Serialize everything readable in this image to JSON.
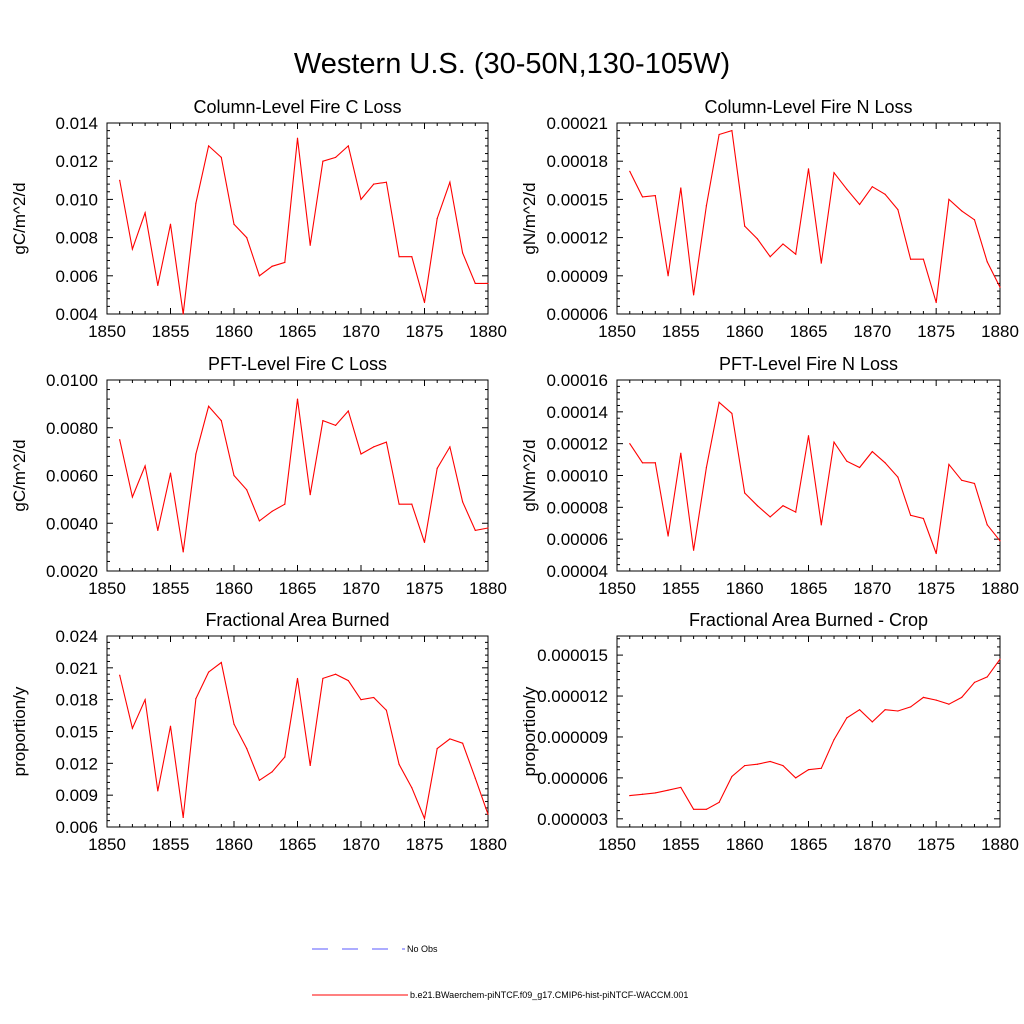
{
  "title": "Western U.S. (30-50N,130-105W)",
  "chart_data": [
    {
      "type": "line",
      "title": "Column-Level Fire C Loss",
      "ylabel": "gC/m^2/d",
      "xlim": [
        1850,
        1880
      ],
      "ylim": [
        0.004,
        0.014
      ],
      "xticks": [
        1850,
        1855,
        1860,
        1865,
        1870,
        1875,
        1880
      ],
      "yticks": [
        "0.004",
        "0.006",
        "0.008",
        "0.010",
        "0.012",
        "0.014"
      ],
      "series": [
        {
          "color": "#ff0000",
          "x": [
            1851,
            1852,
            1853,
            1854,
            1855,
            1856,
            1857,
            1858,
            1859,
            1860,
            1861,
            1862,
            1863,
            1864,
            1865,
            1866,
            1867,
            1868,
            1869,
            1870,
            1871,
            1872,
            1873,
            1874,
            1875,
            1876,
            1877,
            1878,
            1879,
            1880
          ],
          "y": [
            0.011,
            0.0074,
            0.0093,
            0.0055,
            0.0087,
            0.004,
            0.0098,
            0.0128,
            0.0122,
            0.0087,
            0.008,
            0.006,
            0.0065,
            0.0067,
            0.0132,
            0.0076,
            0.012,
            0.0122,
            0.0128,
            0.01,
            0.0108,
            0.0109,
            0.007,
            0.007,
            0.0046,
            0.009,
            0.0109,
            0.0072,
            0.0056,
            0.0056
          ]
        }
      ]
    },
    {
      "type": "line",
      "title": "Column-Level Fire N Loss",
      "ylabel": "gN/m^2/d",
      "xlim": [
        1850,
        1880
      ],
      "ylim": [
        6e-05,
        0.00021
      ],
      "xticks": [
        1850,
        1855,
        1860,
        1865,
        1870,
        1875,
        1880
      ],
      "yticks": [
        "0.00006",
        "0.00009",
        "0.00012",
        "0.00015",
        "0.00018",
        "0.00021"
      ],
      "series": [
        {
          "color": "#ff0000",
          "x": [
            1851,
            1852,
            1853,
            1854,
            1855,
            1856,
            1857,
            1858,
            1859,
            1860,
            1861,
            1862,
            1863,
            1864,
            1865,
            1866,
            1867,
            1868,
            1869,
            1870,
            1871,
            1872,
            1873,
            1874,
            1875,
            1876,
            1877,
            1878,
            1879,
            1880
          ],
          "y": [
            0.000172,
            0.000152,
            0.000153,
            9e-05,
            0.000159,
            7.5e-05,
            0.000145,
            0.000201,
            0.000204,
            0.000129,
            0.000119,
            0.000105,
            0.000115,
            0.000107,
            0.000174,
            0.0001,
            0.000171,
            0.000158,
            0.000146,
            0.00016,
            0.000154,
            0.000142,
            0.000103,
            0.000103,
            6.9e-05,
            0.00015,
            0.000141,
            0.000134,
            0.000101,
            8.1e-05
          ]
        }
      ]
    },
    {
      "type": "line",
      "title": "PFT-Level Fire C Loss",
      "ylabel": "gC/m^2/d",
      "xlim": [
        1850,
        1880
      ],
      "ylim": [
        0.002,
        0.01
      ],
      "xticks": [
        1850,
        1855,
        1860,
        1865,
        1870,
        1875,
        1880
      ],
      "yticks": [
        "0.0020",
        "0.0040",
        "0.0060",
        "0.0080",
        "0.0100"
      ],
      "series": [
        {
          "color": "#ff0000",
          "x": [
            1851,
            1852,
            1853,
            1854,
            1855,
            1856,
            1857,
            1858,
            1859,
            1860,
            1861,
            1862,
            1863,
            1864,
            1865,
            1866,
            1867,
            1868,
            1869,
            1870,
            1871,
            1872,
            1873,
            1874,
            1875,
            1876,
            1877,
            1878,
            1879,
            1880
          ],
          "y": [
            0.0075,
            0.0051,
            0.0064,
            0.0037,
            0.0061,
            0.0028,
            0.0069,
            0.0089,
            0.0083,
            0.006,
            0.0054,
            0.0041,
            0.0045,
            0.0048,
            0.0092,
            0.0052,
            0.0083,
            0.0081,
            0.0087,
            0.0069,
            0.0072,
            0.0074,
            0.0048,
            0.0048,
            0.0032,
            0.0063,
            0.0072,
            0.0049,
            0.0037,
            0.0038
          ]
        }
      ]
    },
    {
      "type": "line",
      "title": "PFT-Level Fire N Loss",
      "ylabel": "gN/m^2/d",
      "xlim": [
        1850,
        1880
      ],
      "ylim": [
        4e-05,
        0.00016
      ],
      "xticks": [
        1850,
        1855,
        1860,
        1865,
        1870,
        1875,
        1880
      ],
      "yticks": [
        "0.00004",
        "0.00006",
        "0.00008",
        "0.00010",
        "0.00012",
        "0.00014",
        "0.00016"
      ],
      "series": [
        {
          "color": "#ff0000",
          "x": [
            1851,
            1852,
            1853,
            1854,
            1855,
            1856,
            1857,
            1858,
            1859,
            1860,
            1861,
            1862,
            1863,
            1864,
            1865,
            1866,
            1867,
            1868,
            1869,
            1870,
            1871,
            1872,
            1873,
            1874,
            1875,
            1876,
            1877,
            1878,
            1879,
            1880
          ],
          "y": [
            0.00012,
            0.000108,
            0.000108,
            6.2e-05,
            0.000114,
            5.3e-05,
            0.000105,
            0.000146,
            0.000139,
            8.9e-05,
            8.1e-05,
            7.4e-05,
            8.1e-05,
            7.7e-05,
            0.000125,
            6.9e-05,
            0.000121,
            0.000109,
            0.000105,
            0.000115,
            0.000108,
            9.9e-05,
            7.5e-05,
            7.3e-05,
            5.1e-05,
            0.000107,
            9.7e-05,
            9.5e-05,
            6.9e-05,
            5.9e-05
          ]
        }
      ]
    },
    {
      "type": "line",
      "title": "Fractional Area Burned",
      "ylabel": "proportion/y",
      "xlim": [
        1850,
        1880
      ],
      "ylim": [
        0.006,
        0.024
      ],
      "xticks": [
        1850,
        1855,
        1860,
        1865,
        1870,
        1875,
        1880
      ],
      "yticks": [
        "0.006",
        "0.009",
        "0.012",
        "0.015",
        "0.018",
        "0.021",
        "0.024"
      ],
      "series": [
        {
          "color": "#ff0000",
          "x": [
            1851,
            1852,
            1853,
            1854,
            1855,
            1856,
            1857,
            1858,
            1859,
            1860,
            1861,
            1862,
            1863,
            1864,
            1865,
            1866,
            1867,
            1868,
            1869,
            1870,
            1871,
            1872,
            1873,
            1874,
            1875,
            1876,
            1877,
            1878,
            1879,
            1880
          ],
          "y": [
            0.0203,
            0.0153,
            0.018,
            0.0094,
            0.0155,
            0.0069,
            0.0181,
            0.0206,
            0.0215,
            0.0157,
            0.0134,
            0.0104,
            0.0112,
            0.0126,
            0.02,
            0.0118,
            0.02,
            0.0204,
            0.0198,
            0.018,
            0.0182,
            0.017,
            0.0119,
            0.0097,
            0.0068,
            0.0134,
            0.0143,
            0.0139,
            0.0106,
            0.0072
          ]
        }
      ]
    },
    {
      "type": "line",
      "title": "Fractional Area Burned - Crop",
      "ylabel": "proportion/y",
      "xlim": [
        1850,
        1880
      ],
      "ylim": [
        2.4e-06,
        1.64e-05
      ],
      "xticks": [
        1850,
        1855,
        1860,
        1865,
        1870,
        1875,
        1880
      ],
      "yticks": [
        "0.000003",
        "0.000006",
        "0.000009",
        "0.000012",
        "0.000015"
      ],
      "series": [
        {
          "color": "#ff0000",
          "x": [
            1851,
            1852,
            1853,
            1854,
            1855,
            1856,
            1857,
            1858,
            1859,
            1860,
            1861,
            1862,
            1863,
            1864,
            1865,
            1866,
            1867,
            1868,
            1869,
            1870,
            1871,
            1872,
            1873,
            1874,
            1875,
            1876,
            1877,
            1878,
            1879,
            1880
          ],
          "y": [
            4.7e-06,
            4.8e-06,
            4.9e-06,
            5.1e-06,
            5.3e-06,
            3.7e-06,
            3.7e-06,
            4.2e-06,
            6.1e-06,
            6.9e-06,
            7e-06,
            7.2e-06,
            6.9e-06,
            6e-06,
            6.6e-06,
            6.7e-06,
            8.8e-06,
            1.04e-05,
            1.1e-05,
            1.01e-05,
            1.1e-05,
            1.09e-05,
            1.12e-05,
            1.19e-05,
            1.17e-05,
            1.14e-05,
            1.19e-05,
            1.3e-05,
            1.34e-05,
            1.47e-05
          ]
        }
      ]
    }
  ],
  "legend": [
    {
      "label": "No Obs",
      "color": "#5a5aff",
      "style": "dashed"
    },
    {
      "label": "b.e21.BWaerchem-piNTCF.f09_g17.CMIP6-hist-piNTCF-WACCM.001",
      "color": "#ff0000",
      "style": "solid"
    }
  ]
}
